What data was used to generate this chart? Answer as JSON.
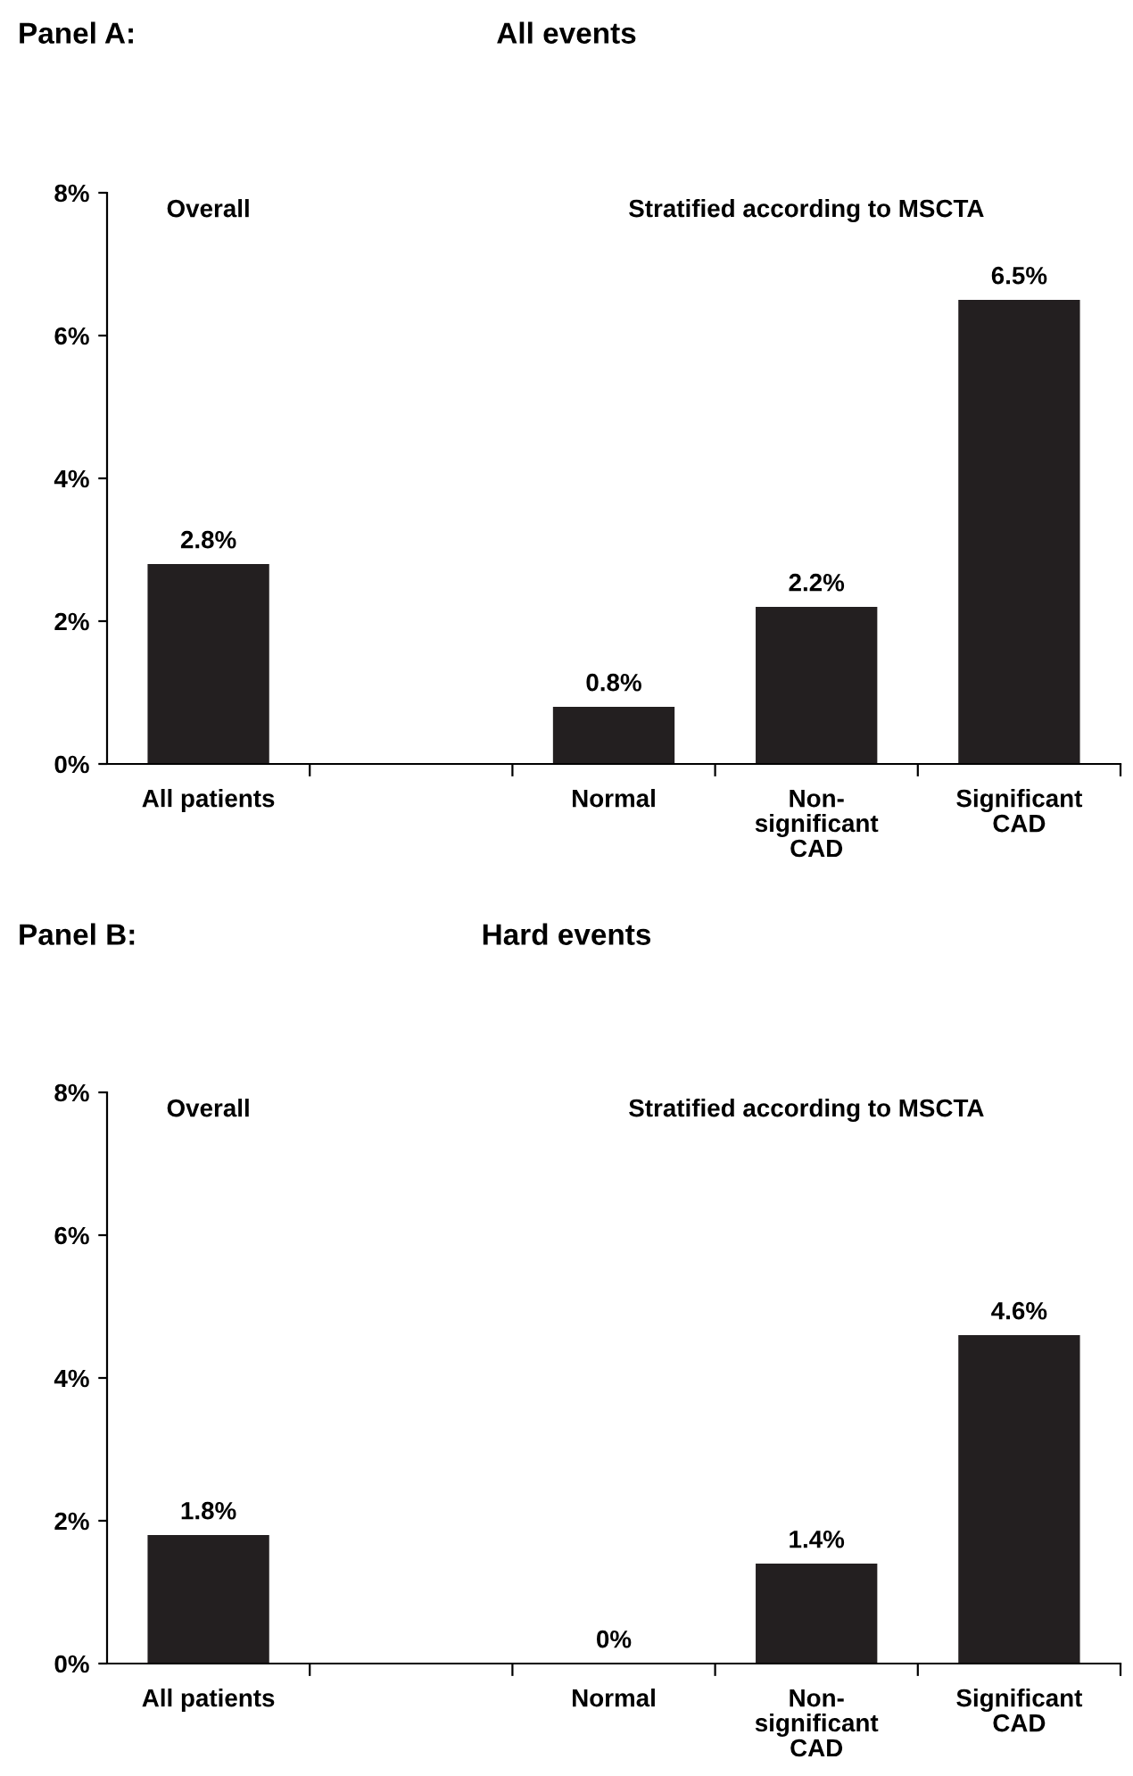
{
  "chart_data": [
    {
      "type": "bar",
      "title": "All events",
      "annotations": [
        "Panel A:",
        "Overall",
        "Stratified according to MSCTA"
      ],
      "categories": [
        "All patients",
        null,
        "Normal",
        "Non-\nsignificant\nCAD",
        "Significant\nCAD"
      ],
      "values": [
        2.8,
        null,
        0.8,
        2.2,
        6.5
      ],
      "value_labels": [
        "2.8%",
        null,
        "0.8%",
        "2.2%",
        "6.5%"
      ],
      "color": "#231f20",
      "ylim": [
        0,
        8
      ],
      "yticks": [
        {
          "value": 0,
          "label": "0%"
        },
        {
          "value": 2,
          "label": "2%"
        },
        {
          "value": 4,
          "label": "4%"
        },
        {
          "value": 6,
          "label": "6%"
        },
        {
          "value": 8,
          "label": "8%"
        }
      ],
      "grid": false
    },
    {
      "type": "bar",
      "title": "Hard events",
      "annotations": [
        "Panel B:",
        "Overall",
        "Stratified according to MSCTA"
      ],
      "categories": [
        "All patients",
        null,
        "Normal",
        "Non-\nsignificant\nCAD",
        "Significant\nCAD"
      ],
      "values": [
        1.8,
        null,
        0,
        1.4,
        4.6
      ],
      "value_labels": [
        "1.8%",
        null,
        "0%",
        "1.4%",
        "4.6%"
      ],
      "color": "#231f20",
      "ylim": [
        0,
        8
      ],
      "yticks": [
        {
          "value": 0,
          "label": "0%"
        },
        {
          "value": 2,
          "label": "2%"
        },
        {
          "value": 4,
          "label": "4%"
        },
        {
          "value": 6,
          "label": "6%"
        },
        {
          "value": 8,
          "label": "8%"
        }
      ],
      "grid": false
    }
  ]
}
